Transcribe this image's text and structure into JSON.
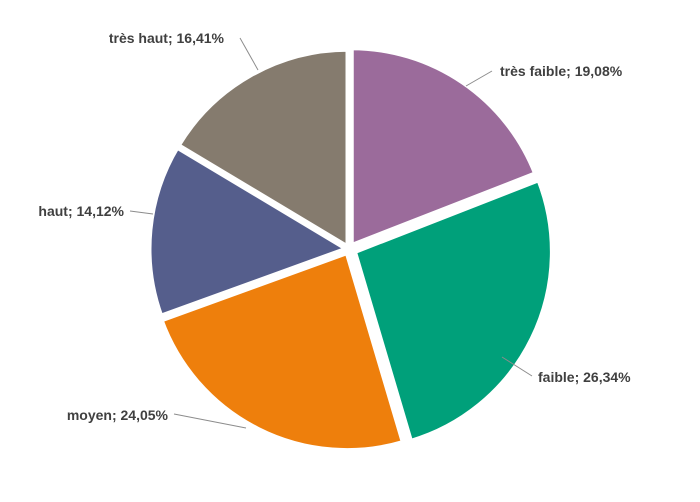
{
  "chart_data": {
    "type": "pie",
    "title": "",
    "legend": "none",
    "slices": [
      {
        "label": "très faible",
        "value": 19.08,
        "display": "très faible; 19,08%",
        "color": "#9b6b9b"
      },
      {
        "label": "faible",
        "value": 26.34,
        "display": "faible; 26,34%",
        "color": "#00a07a"
      },
      {
        "label": "moyen",
        "value": 24.05,
        "display": "moyen; 24,05%",
        "color": "#ee7f0c"
      },
      {
        "label": "haut",
        "value": 14.12,
        "display": "haut; 14,12%",
        "color": "#555e8c"
      },
      {
        "label": "très haut",
        "value": 16.41,
        "display": "très haut; 16,41%",
        "color": "#857b6e"
      }
    ]
  }
}
